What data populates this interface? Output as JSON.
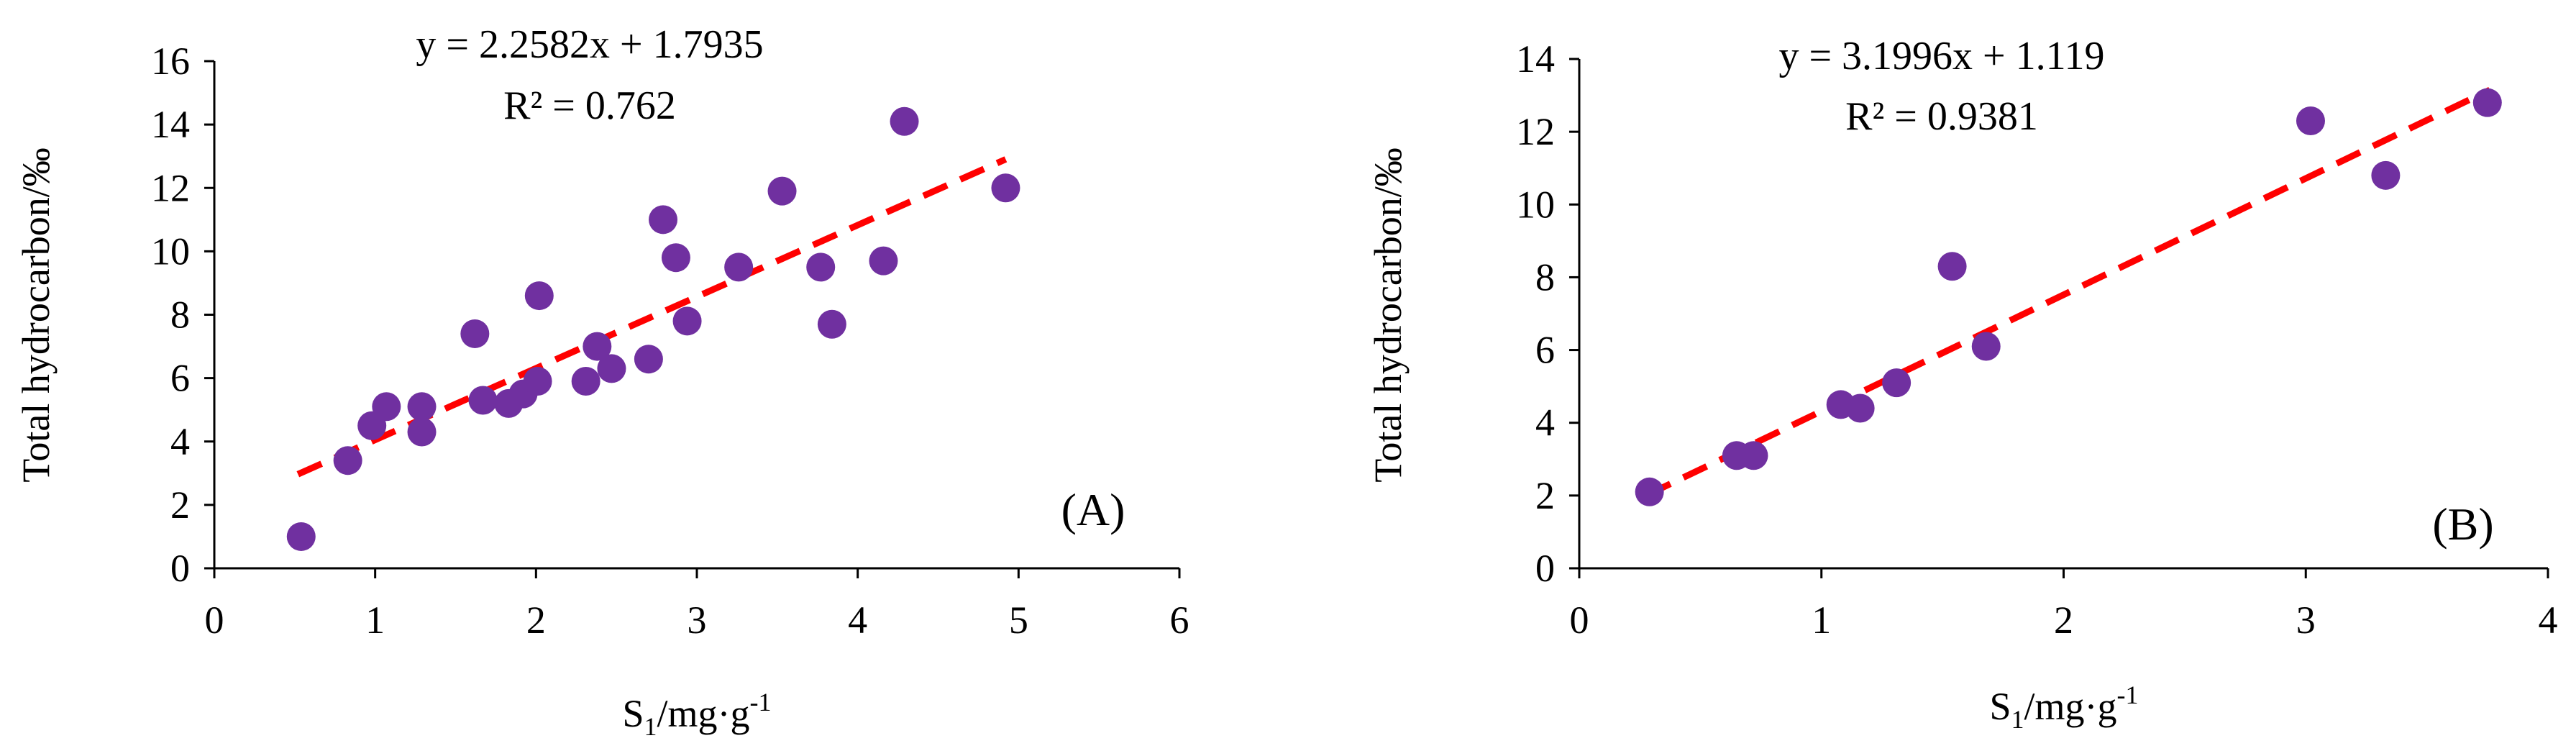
{
  "chart_data": [
    {
      "type": "scatter",
      "panel_label": "(A)",
      "xlabel": {
        "main": "S",
        "sub": "1",
        "mid": "/mg·g",
        "sup": "-1"
      },
      "ylabel": "Total hydrocarbon/‰",
      "xlim": [
        0,
        6
      ],
      "ylim": [
        0,
        16
      ],
      "xticks": [
        0,
        1,
        2,
        3,
        4,
        5,
        6
      ],
      "yticks": [
        0,
        2,
        4,
        6,
        8,
        10,
        12,
        14,
        16
      ],
      "xtick_labels": [
        "0",
        "1",
        "2",
        "3",
        "4",
        "5",
        "6"
      ],
      "ytick_labels": [
        "0",
        "2",
        "4",
        "6",
        "8",
        "10",
        "12",
        "14",
        "16"
      ],
      "equation": "y = 2.2582x  + 1.7935",
      "r_squared": "R² = 0.762",
      "trend": {
        "slope": 2.2582,
        "intercept": 1.7935,
        "x_range": [
          0.52,
          4.92
        ]
      },
      "marker_color": "#7030a0",
      "trend_color": "#ff0000",
      "grid": false,
      "points": [
        [
          0.54,
          1.0
        ],
        [
          0.83,
          3.4
        ],
        [
          0.98,
          4.5
        ],
        [
          1.07,
          5.1
        ],
        [
          1.29,
          5.1
        ],
        [
          1.29,
          4.3
        ],
        [
          1.62,
          7.4
        ],
        [
          1.67,
          5.3
        ],
        [
          1.83,
          5.2
        ],
        [
          1.92,
          5.5
        ],
        [
          2.01,
          5.9
        ],
        [
          2.02,
          8.6
        ],
        [
          2.31,
          5.9
        ],
        [
          2.38,
          7.0
        ],
        [
          2.47,
          6.3
        ],
        [
          2.7,
          6.6
        ],
        [
          2.79,
          11.0
        ],
        [
          2.87,
          9.8
        ],
        [
          2.94,
          7.8
        ],
        [
          3.26,
          9.5
        ],
        [
          3.53,
          11.9
        ],
        [
          3.77,
          9.5
        ],
        [
          3.84,
          7.7
        ],
        [
          4.16,
          9.7
        ],
        [
          4.29,
          14.1
        ],
        [
          4.92,
          12.0
        ]
      ]
    },
    {
      "type": "scatter",
      "panel_label": "(B)",
      "xlabel": {
        "main": "S",
        "sub": "1",
        "mid": "/mg·g",
        "sup": "-1"
      },
      "ylabel": "Total hydrocarbon/‰",
      "xlim": [
        0,
        4
      ],
      "ylim": [
        0,
        14
      ],
      "xticks": [
        0,
        1,
        2,
        3,
        4
      ],
      "yticks": [
        0,
        2,
        4,
        6,
        8,
        10,
        12,
        14
      ],
      "xtick_labels": [
        "0",
        "1",
        "2",
        "3",
        "4"
      ],
      "ytick_labels": [
        "0",
        "2",
        "4",
        "6",
        "8",
        "10",
        "12",
        "14"
      ],
      "equation": "y = 3.1996x  + 1.119",
      "r_squared": "R² = 0.9381",
      "trend": {
        "slope": 3.1996,
        "intercept": 1.119,
        "x_range": [
          0.28,
          3.76
        ]
      },
      "marker_color": "#7030a0",
      "trend_color": "#ff0000",
      "grid": false,
      "points": [
        [
          0.29,
          2.1
        ],
        [
          0.65,
          3.1
        ],
        [
          0.72,
          3.1
        ],
        [
          1.08,
          4.5
        ],
        [
          1.16,
          4.4
        ],
        [
          1.31,
          5.1
        ],
        [
          1.54,
          8.3
        ],
        [
          1.68,
          6.1
        ],
        [
          3.02,
          12.3
        ],
        [
          3.33,
          10.8
        ],
        [
          3.75,
          12.8
        ]
      ]
    }
  ]
}
